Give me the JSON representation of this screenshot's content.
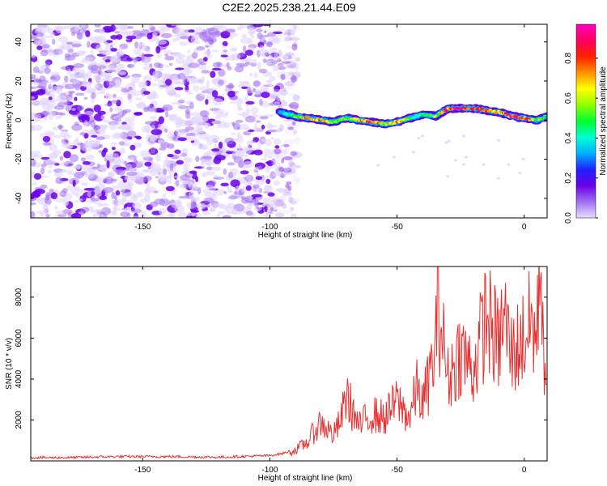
{
  "page": {
    "title": "C2E2.2025.238.21.44.E09"
  },
  "chart_data": [
    {
      "type": "heatmap",
      "title": "C2E2.2025.238.21.44.E09",
      "xlabel": "Height of straight line (km)",
      "ylabel": "Frequency (Hz)",
      "xlim": [
        -194,
        9
      ],
      "ylim": [
        -50,
        49
      ],
      "x_ticks": [
        -150,
        -100,
        -50,
        0
      ],
      "y_ticks": [
        -40,
        -20,
        0,
        20,
        40
      ],
      "colorbar": {
        "label": "Normalized spectral amplitude",
        "range": [
          0,
          0.97
        ],
        "ticks": [
          0,
          0.2,
          0.4,
          0.6,
          0.8
        ],
        "tick_labels": [
          "0.0",
          "0.2",
          "0.4",
          "0.6",
          "0.8"
        ],
        "colors": [
          "#e8dcff",
          "#a070f0",
          "#6a00e8",
          "#2020ff",
          "#00b0ff",
          "#00ffd0",
          "#00ff30",
          "#90ff00",
          "#ffff00",
          "#ff9000",
          "#ff2000",
          "#ff0060",
          "#ff00c0"
        ]
      },
      "noise_region": {
        "x": [
          -194,
          -89
        ],
        "y": [
          -50,
          49
        ],
        "amplitude": [
          0.0,
          0.15
        ]
      },
      "signal_track": {
        "x": [
          -96,
          -90,
          -85,
          -80,
          -75,
          -70,
          -65,
          -60,
          -55,
          -50,
          -45,
          -40,
          -35,
          -30,
          -25,
          -20,
          -15,
          -10,
          -5,
          0,
          5,
          9
        ],
        "frequency": [
          4,
          2,
          1,
          0,
          -1,
          1,
          0,
          -1,
          -2,
          -1,
          1,
          3,
          2,
          6,
          6,
          6,
          5,
          4,
          2,
          1,
          0,
          2
        ],
        "amplitude": [
          0.35,
          0.55,
          0.8,
          0.75,
          0.6,
          0.55,
          0.7,
          0.95,
          0.6,
          0.8,
          0.5,
          0.45,
          0.6,
          0.9,
          0.95,
          0.85,
          0.8,
          0.7,
          0.9,
          0.85,
          0.6,
          0.45
        ]
      }
    },
    {
      "type": "line",
      "title": "",
      "xlabel": "Height of straight line (km)",
      "ylabel": "SNR (10 * v/v)",
      "xlim": [
        -194,
        9
      ],
      "ylim": [
        0,
        9500
      ],
      "x_ticks": [
        -150,
        -100,
        -50,
        0
      ],
      "y_ticks": [
        2000,
        4000,
        6000,
        8000
      ],
      "series": [
        {
          "color": "#e83030",
          "x": [
            -194,
            -180,
            -160,
            -140,
            -120,
            -100,
            -95,
            -90,
            -85,
            -82,
            -80,
            -75,
            -72,
            -70,
            -65,
            -60,
            -55,
            -50,
            -45,
            -42,
            -40,
            -35,
            -34,
            -30,
            -25,
            -20,
            -15,
            -10,
            -8,
            -5,
            0,
            3,
            5,
            6,
            7,
            8,
            9
          ],
          "y": [
            100,
            100,
            150,
            150,
            120,
            200,
            300,
            500,
            900,
            1500,
            1800,
            1200,
            1900,
            3100,
            1600,
            2200,
            2000,
            2800,
            2000,
            3500,
            2600,
            5000,
            7600,
            3800,
            5200,
            4200,
            6800,
            5400,
            6800,
            5000,
            5800,
            6500,
            5500,
            9500,
            8800,
            3500,
            2500
          ]
        }
      ]
    }
  ]
}
